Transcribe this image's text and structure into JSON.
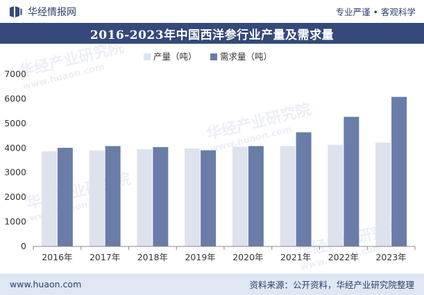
{
  "header": {
    "brand": "华经情报网",
    "slogan": "专业严谨 • 客观科学"
  },
  "watermarks": {
    "cn": "华经产业研究院",
    "url": "www.huaon.com"
  },
  "footer": {
    "website": "www.huaon.com",
    "source": "资料来源：公开资料，华经产业研究院整理"
  },
  "colors": {
    "production": "#dde2ee",
    "demand": "#6a7ca8",
    "title_bg": "#35497a",
    "footer_bg": "#dfe6f4"
  },
  "chart_data": {
    "type": "bar",
    "title": "2016-2023年中国西洋参行业产量及需求量",
    "categories": [
      "2016年",
      "2017年",
      "2018年",
      "2019年",
      "2020年",
      "2021年",
      "2022年",
      "2023年"
    ],
    "series": [
      {
        "name": "产量（吨）",
        "values": [
          3870,
          3900,
          3950,
          3980,
          4050,
          4080,
          4130,
          4220
        ]
      },
      {
        "name": "需求量（吨）",
        "values": [
          4010,
          4080,
          4040,
          3910,
          4080,
          4640,
          5270,
          6080
        ]
      }
    ],
    "ylim": [
      0,
      7000
    ],
    "yticks": [
      "0",
      "1000",
      "2000",
      "3000",
      "4000",
      "5000",
      "6000",
      "7000"
    ],
    "xlabel": "",
    "ylabel": "",
    "legend": "top-center"
  }
}
